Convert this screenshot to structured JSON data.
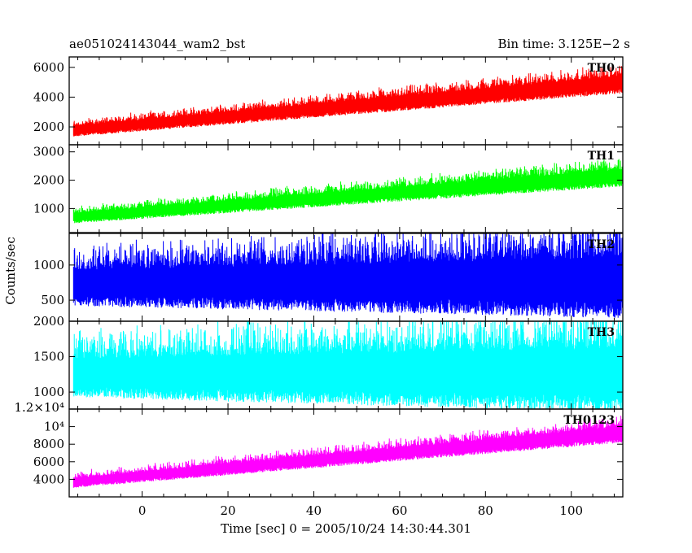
{
  "header": {
    "obs_id": "ae051024143044_wam2_bst",
    "bin_time": "Bin time: 3.125E−2 s"
  },
  "chart_data": {
    "type": "line",
    "xlabel": "Time [sec] 0 = 2005/10/24 14:30:44.301",
    "ylabel": "Counts/sec",
    "xlim": [
      -17,
      112
    ],
    "x_ticks": [
      0,
      20,
      40,
      60,
      80,
      100
    ],
    "x_tick_labels": [
      "0",
      "20",
      "40",
      "60",
      "80",
      "100"
    ],
    "panels": [
      {
        "name": "TH0",
        "color": "#ff0000",
        "ylim": [
          800,
          6700
        ],
        "y_ticks": [
          2000,
          4000,
          6000
        ],
        "y_tick_labels": [
          "2000",
          "4000",
          "6000"
        ],
        "trend": {
          "x": [
            -16,
            112
          ],
          "y": [
            1800,
            5000
          ]
        },
        "band_low": 600,
        "band_high": 750
      },
      {
        "name": "TH1",
        "color": "#00ff00",
        "ylim": [
          150,
          3250
        ],
        "y_ticks": [
          1000,
          2000,
          3000
        ],
        "y_tick_labels": [
          "1000",
          "2000",
          "3000"
        ],
        "trend": {
          "x": [
            -16,
            112
          ],
          "y": [
            700,
            2150
          ]
        },
        "band_low": 300,
        "band_high": 400
      },
      {
        "name": "TH2",
        "color": "#0000ff",
        "ylim": [
          200,
          1450
        ],
        "y_ticks": [
          500,
          1000
        ],
        "y_tick_labels": [
          "500",
          "1000"
        ],
        "trend": {
          "x": [
            -16,
            112
          ],
          "y": [
            740,
            780
          ]
        },
        "band_low": 430,
        "band_high": 560
      },
      {
        "name": "TH3",
        "color": "#00ffff",
        "ylim": [
          760,
          2000
        ],
        "y_ticks": [
          1000,
          1500,
          2000
        ],
        "y_tick_labels": [
          "1000",
          "1500",
          "2000"
        ],
        "trend": {
          "x": [
            -16,
            112
          ],
          "y": [
            1250,
            1250
          ]
        },
        "band_low": 430,
        "band_high": 640
      },
      {
        "name": "TH0123",
        "color": "#ff00ff",
        "ylim": [
          2000,
          12000
        ],
        "y_ticks": [
          4000,
          6000,
          8000,
          10000
        ],
        "y_tick_labels": [
          "4000",
          "6000",
          "8000",
          "10⁴"
        ],
        "extra_top_label": "1.2×10⁴",
        "trend": {
          "x": [
            -16,
            112
          ],
          "y": [
            3700,
            9300
          ]
        },
        "band_low": 900,
        "band_high": 1200
      }
    ]
  }
}
